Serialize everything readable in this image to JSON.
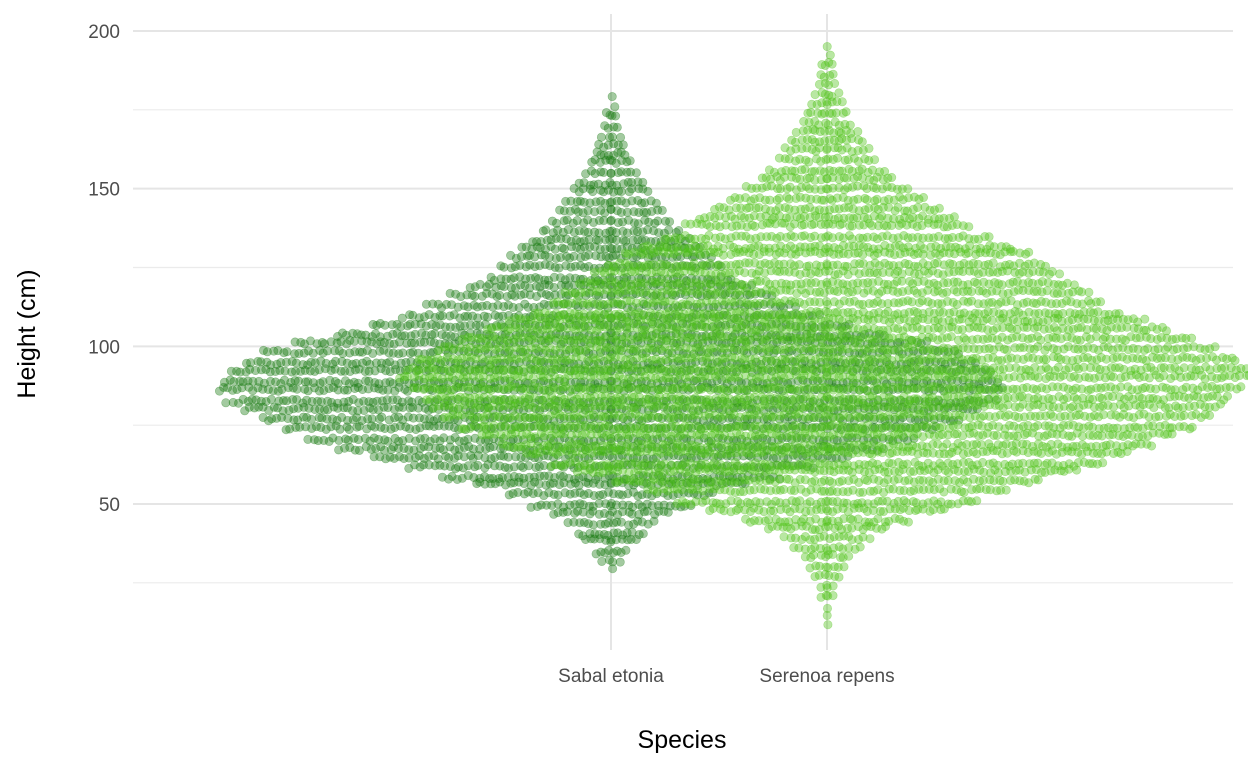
{
  "chart_data": {
    "type": "scatter",
    "subtype": "beeswarm",
    "title": "",
    "xlabel": "Species",
    "ylabel": "Height (cm)",
    "categories": [
      "Sabal etonia",
      "Serenoa repens"
    ],
    "ylim": [
      8,
      208
    ],
    "yticks": [
      50,
      100,
      150,
      200
    ],
    "yticks_minor": [
      25,
      75,
      125,
      175
    ],
    "grid": true,
    "legend": "none",
    "point_opacity": 0.4,
    "series": [
      {
        "category": "Sabal etonia",
        "color": "#1a7a12",
        "range": [
          29,
          180
        ],
        "profile": [
          [
            29,
            0.01
          ],
          [
            35,
            0.04
          ],
          [
            45,
            0.1
          ],
          [
            52,
            0.2
          ],
          [
            60,
            0.38
          ],
          [
            70,
            0.62
          ],
          [
            78,
            0.75
          ],
          [
            85,
            0.83
          ],
          [
            92,
            0.8
          ],
          [
            99,
            0.72
          ],
          [
            105,
            0.55
          ],
          [
            110,
            0.44
          ],
          [
            116,
            0.34
          ],
          [
            122,
            0.26
          ],
          [
            130,
            0.2
          ],
          [
            140,
            0.13
          ],
          [
            150,
            0.08
          ],
          [
            160,
            0.04
          ],
          [
            170,
            0.02
          ],
          [
            180,
            0.01
          ]
        ]
      },
      {
        "category": "Serenoa repens",
        "color": "#50c41a",
        "range": [
          12,
          196
        ],
        "profile": [
          [
            12,
            0.005
          ],
          [
            24,
            0.02
          ],
          [
            32,
            0.05
          ],
          [
            40,
            0.1
          ],
          [
            45,
            0.18
          ],
          [
            50,
            0.3
          ],
          [
            55,
            0.4
          ],
          [
            61,
            0.55
          ],
          [
            70,
            0.7
          ],
          [
            77,
            0.8
          ],
          [
            85,
            0.85
          ],
          [
            90,
            0.9
          ],
          [
            96,
            0.86
          ],
          [
            103,
            0.75
          ],
          [
            112,
            0.6
          ],
          [
            122,
            0.5
          ],
          [
            130,
            0.42
          ],
          [
            138,
            0.3
          ],
          [
            146,
            0.22
          ],
          [
            152,
            0.15
          ],
          [
            160,
            0.1
          ],
          [
            170,
            0.06
          ],
          [
            180,
            0.03
          ],
          [
            190,
            0.015
          ],
          [
            196,
            0.005
          ]
        ]
      }
    ]
  }
}
